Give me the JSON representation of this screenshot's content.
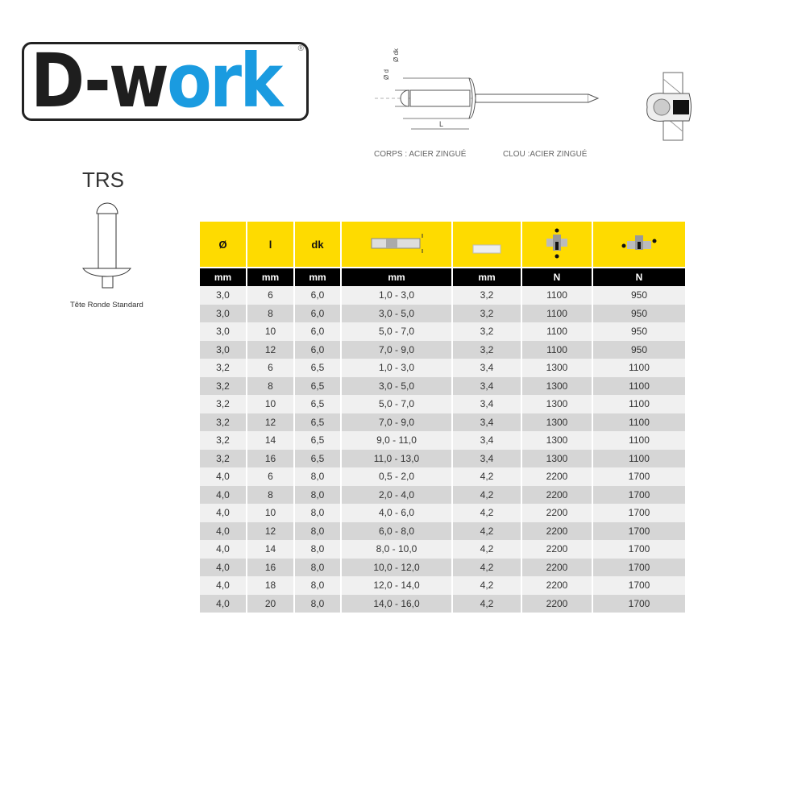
{
  "logo": {
    "text_dark": "D-w",
    "text_blue": "ork",
    "registered": "®",
    "colors": {
      "dark": "#1e1e1e",
      "blue": "#1a9be0"
    }
  },
  "diagram": {
    "labels": {
      "d": "Ø d",
      "dk": "Ø dk",
      "L": "L"
    },
    "body_caption": "CORPS : ACIER ZINGUÉ",
    "mandrel_caption": "CLOU :ACIER ZINGUÉ"
  },
  "product": {
    "code": "TRS",
    "caption": "Tête Ronde Standard"
  },
  "table": {
    "header": [
      "Ø",
      "l",
      "dk",
      "grip-range-icon",
      "drill-hole-icon",
      "tensile-strength-icon",
      "shear-strength-icon"
    ],
    "units": [
      "mm",
      "mm",
      "mm",
      "mm",
      "mm",
      "N",
      "N"
    ],
    "header_color": "#fedb00",
    "rows": [
      [
        "3,0",
        "6",
        "6,0",
        "1,0 - 3,0",
        "3,2",
        "1100",
        "950"
      ],
      [
        "3,0",
        "8",
        "6,0",
        "3,0 - 5,0",
        "3,2",
        "1100",
        "950"
      ],
      [
        "3,0",
        "10",
        "6,0",
        "5,0 - 7,0",
        "3,2",
        "1100",
        "950"
      ],
      [
        "3,0",
        "12",
        "6,0",
        "7,0 - 9,0",
        "3,2",
        "1100",
        "950"
      ],
      [
        "3,2",
        "6",
        "6,5",
        "1,0 - 3,0",
        "3,4",
        "1300",
        "1100"
      ],
      [
        "3,2",
        "8",
        "6,5",
        "3,0 - 5,0",
        "3,4",
        "1300",
        "1100"
      ],
      [
        "3,2",
        "10",
        "6,5",
        "5,0 - 7,0",
        "3,4",
        "1300",
        "1100"
      ],
      [
        "3,2",
        "12",
        "6,5",
        "7,0 - 9,0",
        "3,4",
        "1300",
        "1100"
      ],
      [
        "3,2",
        "14",
        "6,5",
        "9,0 - 11,0",
        "3,4",
        "1300",
        "1100"
      ],
      [
        "3,2",
        "16",
        "6,5",
        "11,0 - 13,0",
        "3,4",
        "1300",
        "1100"
      ],
      [
        "4,0",
        "6",
        "8,0",
        "0,5 - 2,0",
        "4,2",
        "2200",
        "1700"
      ],
      [
        "4,0",
        "8",
        "8,0",
        "2,0 - 4,0",
        "4,2",
        "2200",
        "1700"
      ],
      [
        "4,0",
        "10",
        "8,0",
        "4,0 - 6,0",
        "4,2",
        "2200",
        "1700"
      ],
      [
        "4,0",
        "12",
        "8,0",
        "6,0 - 8,0",
        "4,2",
        "2200",
        "1700"
      ],
      [
        "4,0",
        "14",
        "8,0",
        "8,0 - 10,0",
        "4,2",
        "2200",
        "1700"
      ],
      [
        "4,0",
        "16",
        "8,0",
        "10,0 - 12,0",
        "4,2",
        "2200",
        "1700"
      ],
      [
        "4,0",
        "18",
        "8,0",
        "12,0 - 14,0",
        "4,2",
        "2200",
        "1700"
      ],
      [
        "4,0",
        "20",
        "8,0",
        "14,0 - 16,0",
        "4,2",
        "2200",
        "1700"
      ]
    ]
  }
}
